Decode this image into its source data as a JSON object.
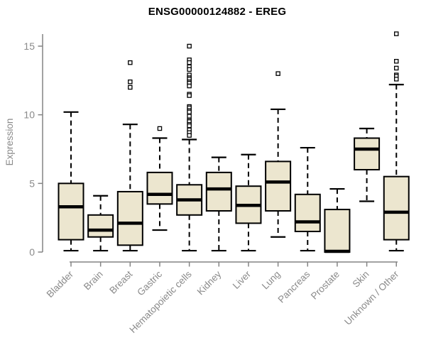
{
  "title": "ENSG00000124882 - EREG",
  "chart_data": {
    "type": "boxplot",
    "title": "ENSG00000124882 - EREG",
    "ylabel": "Expression",
    "xlabel": "",
    "ylim": [
      0,
      15
    ],
    "yticks": [
      0,
      5,
      10,
      15
    ],
    "grid": false,
    "legend": "none",
    "categories": [
      "Bladder",
      "Brain",
      "Breast",
      "Gastric",
      "Hematopoietic cells",
      "Kidney",
      "Liver",
      "Lung",
      "Pancreas",
      "Prostate",
      "Skin",
      "Unknown / Other"
    ],
    "series": [
      {
        "name": "Bladder",
        "whisker_low": 0.1,
        "q1": 0.9,
        "median": 3.3,
        "q3": 5.0,
        "whisker_high": 10.2,
        "outliers": []
      },
      {
        "name": "Brain",
        "whisker_low": 0.1,
        "q1": 1.1,
        "median": 1.6,
        "q3": 2.7,
        "whisker_high": 4.1,
        "outliers": []
      },
      {
        "name": "Breast",
        "whisker_low": 0.1,
        "q1": 0.5,
        "median": 2.1,
        "q3": 4.4,
        "whisker_high": 9.3,
        "outliers": [
          13.8,
          12.4,
          12.0
        ]
      },
      {
        "name": "Gastric",
        "whisker_low": 1.6,
        "q1": 3.5,
        "median": 4.2,
        "q3": 5.8,
        "whisker_high": 8.3,
        "outliers": [
          9.0
        ]
      },
      {
        "name": "Hematopoietic cells",
        "whisker_low": 0.1,
        "q1": 2.7,
        "median": 3.8,
        "q3": 4.9,
        "whisker_high": 8.2,
        "outliers": [
          15.0,
          14.0,
          13.8,
          13.5,
          13.3,
          12.9,
          12.7,
          12.6,
          12.4,
          12.3,
          12.1,
          11.5,
          11.4,
          10.6,
          10.5,
          10.3,
          10.2,
          9.9,
          9.6,
          9.5,
          9.3,
          9.2,
          8.9,
          8.7,
          8.5
        ]
      },
      {
        "name": "Kidney",
        "whisker_low": 0.1,
        "q1": 3.0,
        "median": 4.6,
        "q3": 5.8,
        "whisker_high": 6.9,
        "outliers": []
      },
      {
        "name": "Liver",
        "whisker_low": 0.1,
        "q1": 2.1,
        "median": 3.4,
        "q3": 4.8,
        "whisker_high": 7.1,
        "outliers": []
      },
      {
        "name": "Lung",
        "whisker_low": 1.1,
        "q1": 3.0,
        "median": 5.1,
        "q3": 6.6,
        "whisker_high": 10.4,
        "outliers": [
          13.0
        ]
      },
      {
        "name": "Pancreas",
        "whisker_low": 0.1,
        "q1": 1.5,
        "median": 2.2,
        "q3": 4.2,
        "whisker_high": 7.6,
        "outliers": []
      },
      {
        "name": "Prostate",
        "whisker_low": 0.0,
        "q1": 0.0,
        "median": 0.05,
        "q3": 3.1,
        "whisker_high": 4.6,
        "outliers": []
      },
      {
        "name": "Skin",
        "whisker_low": 3.7,
        "q1": 6.0,
        "median": 7.5,
        "q3": 8.3,
        "whisker_high": 9.0,
        "outliers": []
      },
      {
        "name": "Unknown / Other",
        "whisker_low": 0.1,
        "q1": 0.9,
        "median": 2.9,
        "q3": 5.5,
        "whisker_high": 12.2,
        "outliers": [
          15.9,
          13.9,
          13.4,
          12.9,
          12.8,
          12.6
        ]
      }
    ],
    "colors": {
      "box_fill": "#ECE6CF",
      "box_stroke": "#000000",
      "median": "#000000",
      "whisker": "#000000",
      "outlier_fill": "#ffffff",
      "axis": "#848484",
      "tick_text": "#8a8a8a",
      "title_text": "#000000",
      "background": "#ffffff"
    }
  }
}
